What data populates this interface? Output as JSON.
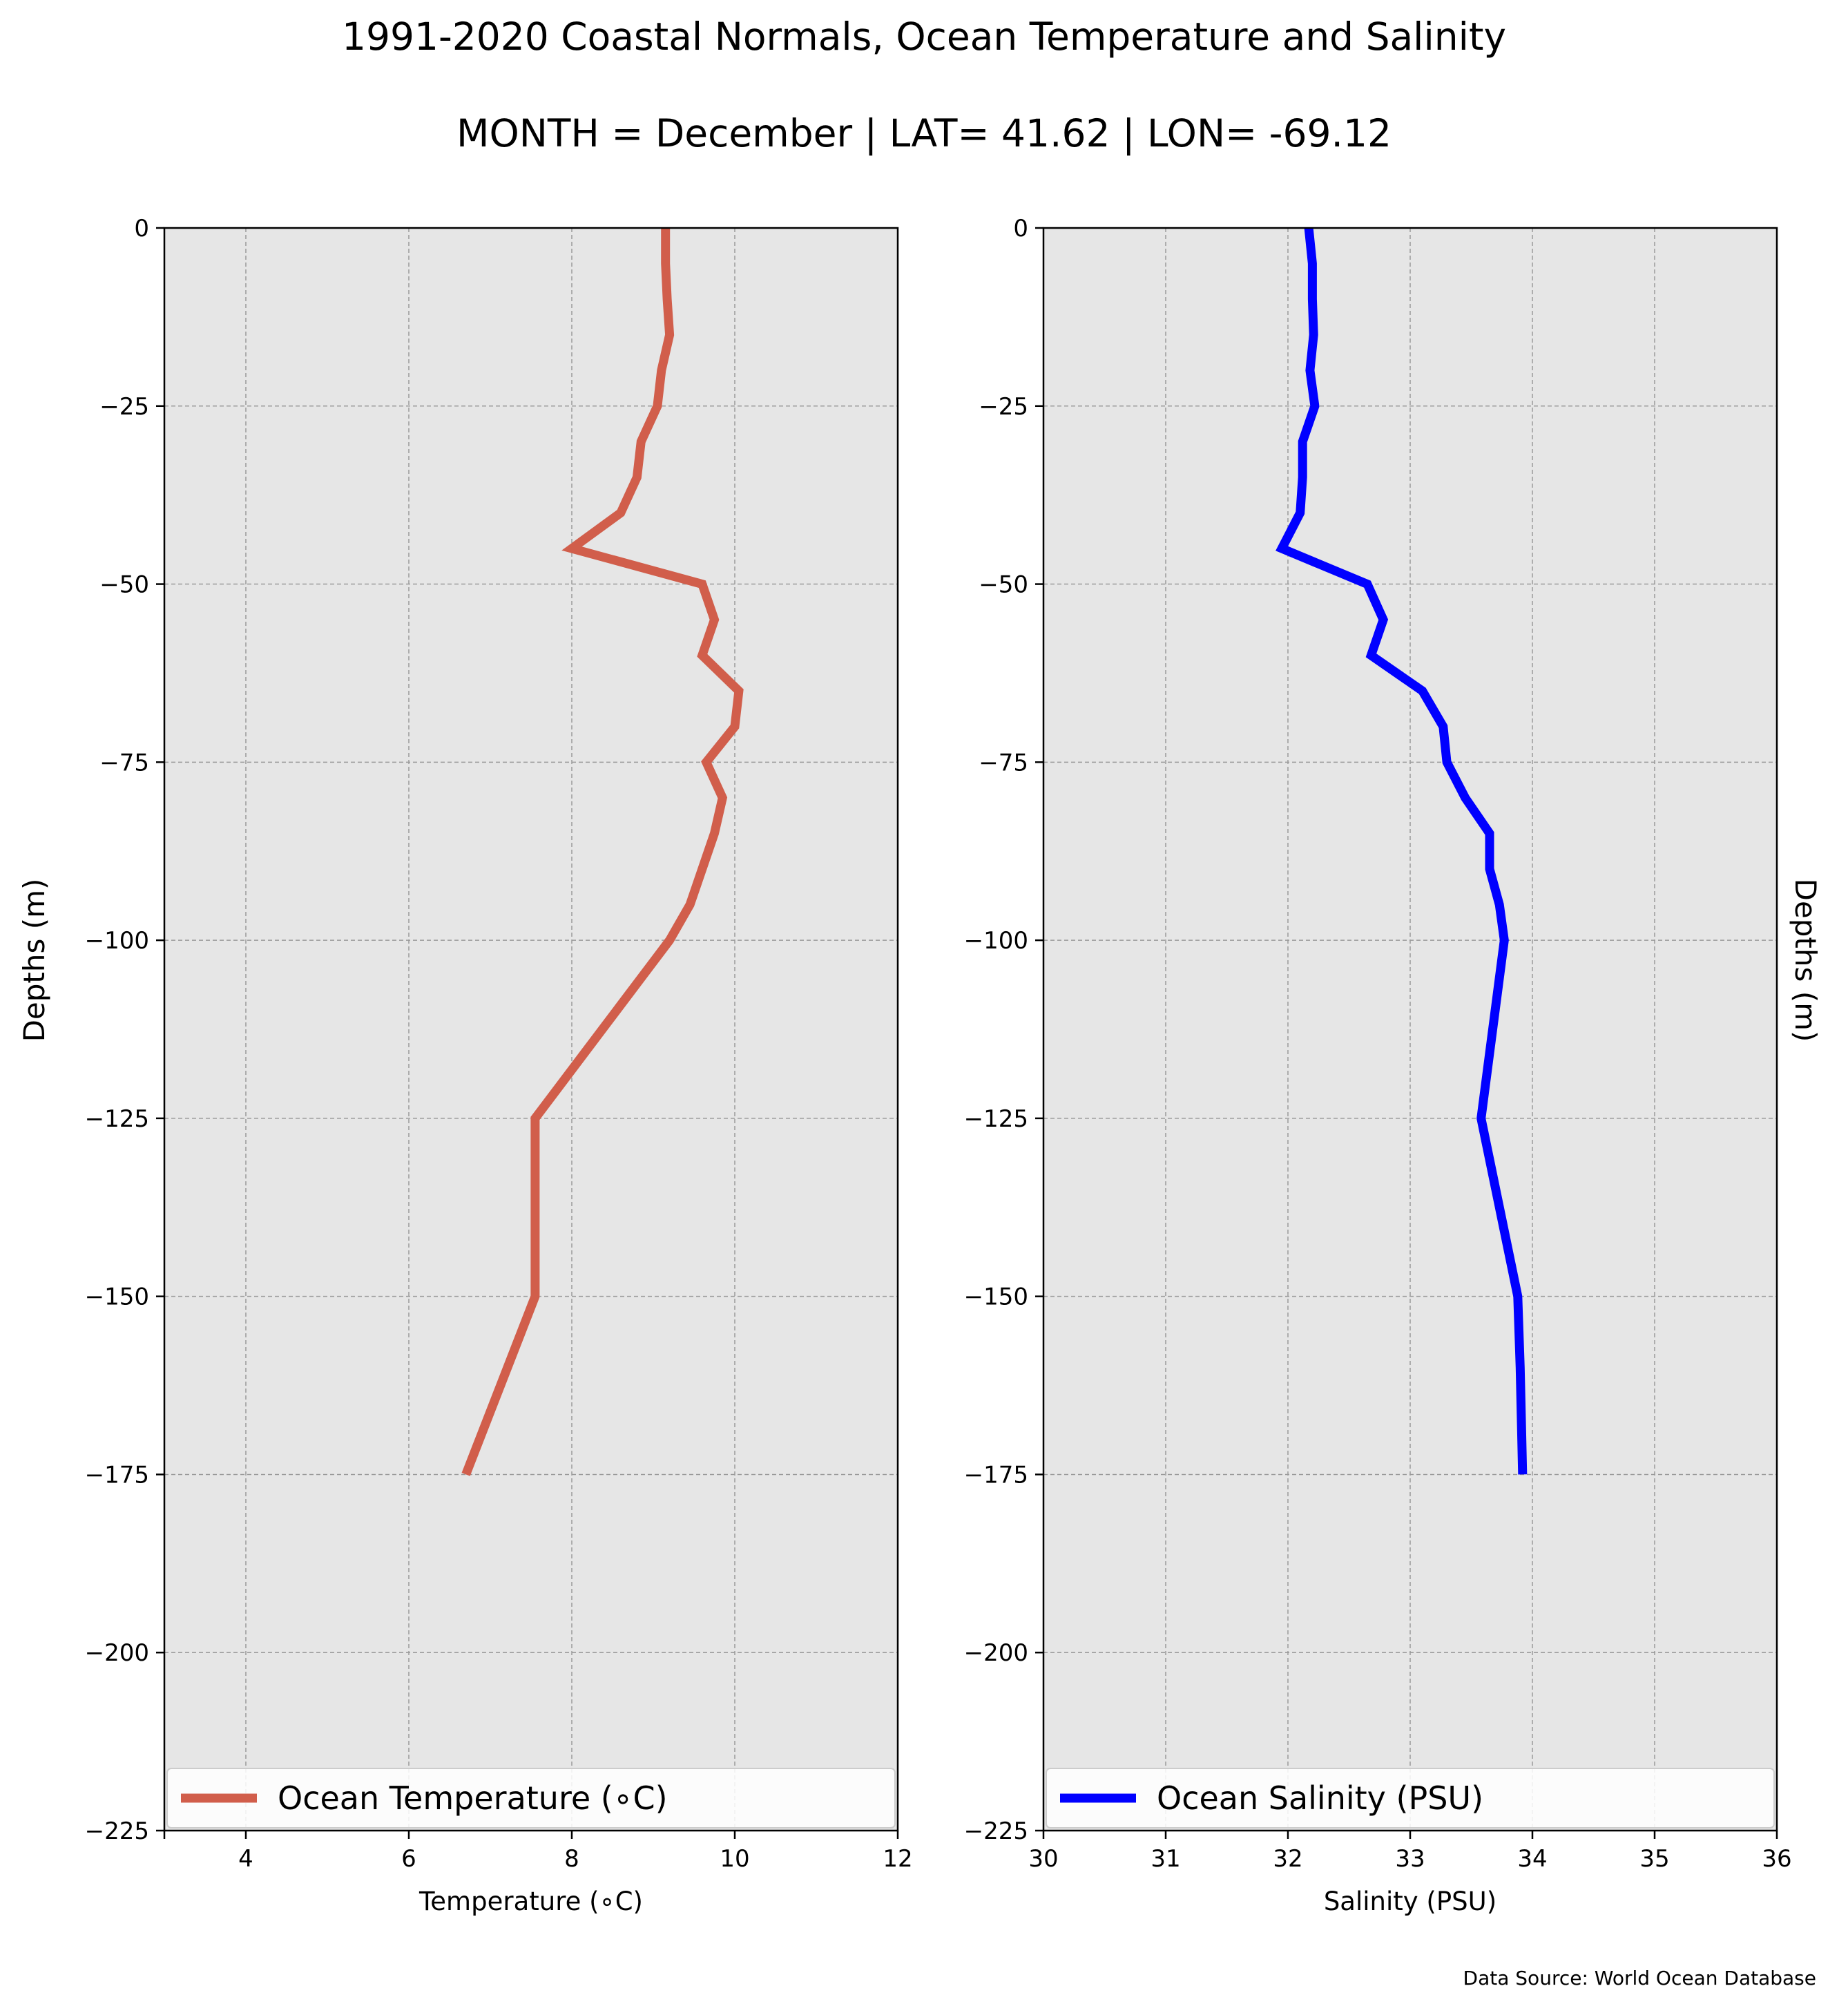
{
  "figure": {
    "title": "1991-2020 Coastal Normals, Ocean Temperature and Salinity",
    "subtitle": "MONTH = December | LAT= 41.62 | LON= -69.12",
    "left_ylabel": "Depths (m)",
    "right_ylabel": "Depths (m)",
    "source": "Data Source: World Ocean Database",
    "panel_bg": "#e6e6e6"
  },
  "chart_data": [
    {
      "type": "line",
      "xlabel": "Temperature ($^\\circ$C)",
      "xlabel_display": "Temperature (∘C)",
      "ylabel": "Depths (m)",
      "xlim": [
        3,
        12
      ],
      "ylim": [
        -225,
        0
      ],
      "xticks": [
        4,
        6,
        8,
        10,
        12
      ],
      "yticks": [
        0,
        -25,
        -50,
        -75,
        -100,
        -125,
        -150,
        -175,
        -200,
        -225
      ],
      "grid": true,
      "legend_loc": "lower center",
      "series": [
        {
          "name": "Ocean Temperature ($^\\circ$C)",
          "legend_label": "Ocean Temperature (∘C)",
          "color": "#d15e4b",
          "x": [
            9.15,
            9.15,
            9.17,
            9.2,
            9.1,
            9.05,
            8.85,
            8.8,
            8.6,
            8.0,
            9.6,
            9.75,
            9.6,
            10.05,
            10.0,
            9.65,
            9.85,
            9.75,
            9.6,
            9.45,
            9.2,
            7.55,
            7.55,
            7.55,
            6.7
          ],
          "y": [
            0,
            -5,
            -10,
            -15,
            -20,
            -25,
            -30,
            -35,
            -40,
            -45,
            -50,
            -55,
            -60,
            -65,
            -70,
            -75,
            -80,
            -85,
            -90,
            -95,
            -100,
            -125,
            -150,
            -150,
            -175
          ]
        }
      ]
    },
    {
      "type": "line",
      "xlabel": "Salinity (PSU)",
      "ylabel": "Depths (m)",
      "xlim": [
        30,
        36
      ],
      "ylim": [
        -225,
        0
      ],
      "xticks": [
        30,
        31,
        32,
        33,
        34,
        35,
        36
      ],
      "yticks": [
        0,
        -25,
        -50,
        -75,
        -100,
        -125,
        -150,
        -175,
        -200,
        -225
      ],
      "grid": true,
      "legend_loc": "lower center",
      "series": [
        {
          "name": "Ocean Salinity (PSU)",
          "legend_label": "Ocean Salinity (PSU)",
          "color": "#0000ff",
          "x": [
            32.17,
            32.2,
            32.2,
            32.21,
            32.18,
            32.22,
            32.12,
            32.12,
            32.1,
            31.95,
            32.65,
            32.78,
            32.68,
            33.1,
            33.27,
            33.3,
            33.45,
            33.65,
            33.65,
            33.73,
            33.77,
            33.58,
            33.88,
            33.9,
            33.92
          ],
          "y": [
            0,
            -5,
            -10,
            -15,
            -20,
            -25,
            -30,
            -35,
            -40,
            -45,
            -50,
            -55,
            -60,
            -65,
            -70,
            -75,
            -80,
            -85,
            -90,
            -95,
            -100,
            -125,
            -150,
            -160,
            -175
          ]
        }
      ]
    }
  ]
}
